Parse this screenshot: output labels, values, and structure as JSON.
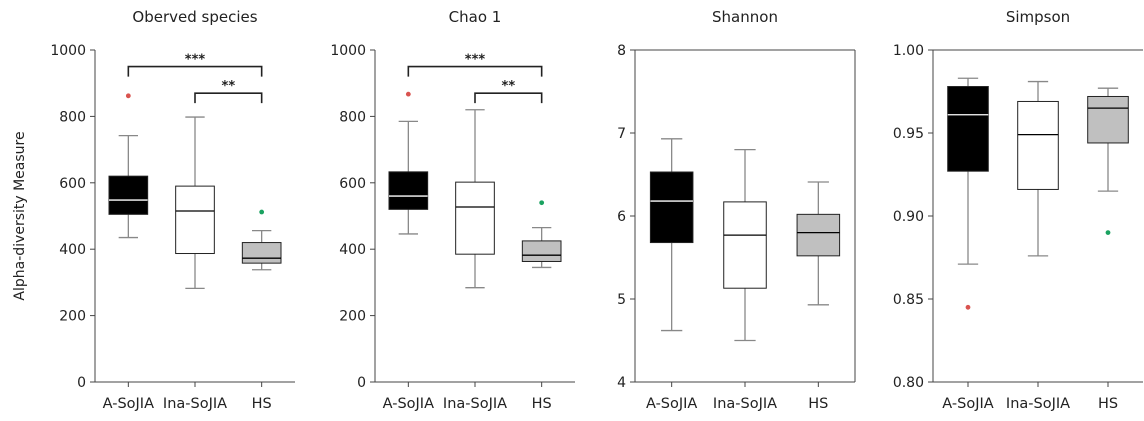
{
  "ylabel": "Alpha-diversity Measure",
  "colors": {
    "fills": [
      "#000000",
      "#ffffff",
      "#c0c0c0"
    ],
    "outlier": [
      "#d9534f",
      "#d9534f",
      "#1aa260"
    ],
    "median_dark": "#ffffff",
    "median_light": "#000000",
    "whisker": "#888888"
  },
  "chart_data": [
    {
      "type": "box",
      "title": "Oberved species",
      "categories": [
        "A-SoJIA",
        "Ina-SoJIA",
        "HS"
      ],
      "ylim": [
        0,
        1000
      ],
      "yticks": [
        0,
        200,
        400,
        600,
        800,
        1000
      ],
      "boxes": [
        {
          "whislo": 435,
          "q1": 505,
          "med": 548,
          "q3": 620,
          "whishi": 742,
          "fliers": [
            862
          ]
        },
        {
          "whislo": 282,
          "q1": 387,
          "med": 515,
          "q3": 590,
          "whishi": 798,
          "fliers": []
        },
        {
          "whislo": 338,
          "q1": 358,
          "med": 373,
          "q3": 420,
          "whishi": 456,
          "fliers": [
            512
          ]
        }
      ],
      "significance": [
        {
          "from": 0,
          "to": 2,
          "y": 950,
          "label": "***"
        },
        {
          "from": 1,
          "to": 2,
          "y": 870,
          "label": "**"
        }
      ]
    },
    {
      "type": "box",
      "title": "Chao 1",
      "categories": [
        "A-SoJIA",
        "Ina-SoJIA",
        "HS"
      ],
      "ylim": [
        0,
        1000
      ],
      "yticks": [
        0,
        200,
        400,
        600,
        800,
        1000
      ],
      "boxes": [
        {
          "whislo": 446,
          "q1": 520,
          "med": 560,
          "q3": 633,
          "whishi": 785,
          "fliers": [
            867
          ]
        },
        {
          "whislo": 284,
          "q1": 385,
          "med": 527,
          "q3": 602,
          "whishi": 820,
          "fliers": []
        },
        {
          "whislo": 345,
          "q1": 363,
          "med": 382,
          "q3": 425,
          "whishi": 465,
          "fliers": [
            540
          ]
        }
      ],
      "significance": [
        {
          "from": 0,
          "to": 2,
          "y": 950,
          "label": "***"
        },
        {
          "from": 1,
          "to": 2,
          "y": 870,
          "label": "**"
        }
      ]
    },
    {
      "type": "box",
      "title": "Shannon",
      "categories": [
        "A-SoJIA",
        "Ina-SoJIA",
        "HS"
      ],
      "ylim": [
        4,
        8
      ],
      "yticks": [
        4,
        5,
        6,
        7,
        8
      ],
      "boxes": [
        {
          "whislo": 4.62,
          "q1": 5.68,
          "med": 6.18,
          "q3": 6.53,
          "whishi": 6.93,
          "fliers": []
        },
        {
          "whislo": 4.5,
          "q1": 5.13,
          "med": 5.77,
          "q3": 6.17,
          "whishi": 6.8,
          "fliers": []
        },
        {
          "whislo": 4.93,
          "q1": 5.52,
          "med": 5.8,
          "q3": 6.02,
          "whishi": 6.41,
          "fliers": []
        }
      ],
      "significance": []
    },
    {
      "type": "box",
      "title": "Simpson",
      "categories": [
        "A-SoJIA",
        "Ina-SoJIA",
        "HS"
      ],
      "ylim": [
        0.8,
        1.0
      ],
      "yticks": [
        0.8,
        0.85,
        0.9,
        0.95,
        1.0
      ],
      "ytick_labels": [
        "0.80",
        "0.85",
        "0.90",
        "0.95",
        "1.00"
      ],
      "boxes": [
        {
          "whislo": 0.871,
          "q1": 0.927,
          "med": 0.961,
          "q3": 0.978,
          "whishi": 0.983,
          "fliers": [
            0.845
          ]
        },
        {
          "whislo": 0.876,
          "q1": 0.916,
          "med": 0.949,
          "q3": 0.969,
          "whishi": 0.981,
          "fliers": []
        },
        {
          "whislo": 0.915,
          "q1": 0.944,
          "med": 0.965,
          "q3": 0.972,
          "whishi": 0.977,
          "fliers": [
            0.89
          ]
        }
      ],
      "significance": []
    }
  ]
}
